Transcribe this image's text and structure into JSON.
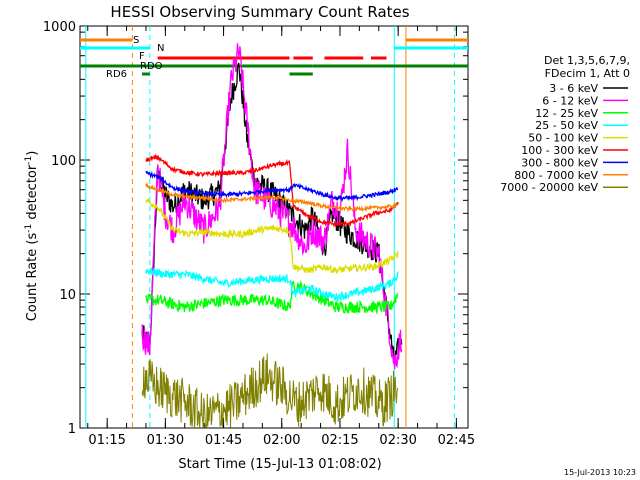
{
  "chart_data": {
    "type": "line",
    "title": "HESSI Observing Summary Count Rates",
    "xlabel": "Start Time (15-Jul-13 01:08:02)",
    "ylabel_main": "Count Rate (s",
    "ylabel_sup1": "-1",
    "ylabel_mid": " detector",
    "ylabel_sup2": "-1",
    "ylabel_end": ")",
    "y_scale": "log",
    "ylim": [
      1,
      1000
    ],
    "xlim_minutes": [
      68,
      168
    ],
    "x_ticks": [
      {
        "minute": 75,
        "label": "01:15"
      },
      {
        "minute": 90,
        "label": "01:30"
      },
      {
        "minute": 105,
        "label": "01:45"
      },
      {
        "minute": 120,
        "label": "02:00"
      },
      {
        "minute": 135,
        "label": "02:15"
      },
      {
        "minute": 150,
        "label": "02:30"
      },
      {
        "minute": 165,
        "label": "02:45"
      }
    ],
    "y_ticks": [
      {
        "value": 1,
        "label": "1"
      },
      {
        "value": 10,
        "label": "10"
      },
      {
        "value": 100,
        "label": "100"
      },
      {
        "value": 1000,
        "label": "1000"
      }
    ],
    "legend_header": [
      "Det 1,3,5,6,7,9,",
      "FDecim 1, Att 0"
    ],
    "legend_placement": "right",
    "series": [
      {
        "name": "3 - 6 keV",
        "color": "#000000",
        "baseline": 40,
        "points": [
          [
            84,
            5
          ],
          [
            86,
            4
          ],
          [
            88,
            80
          ],
          [
            90,
            55
          ],
          [
            92,
            45
          ],
          [
            95,
            60
          ],
          [
            100,
            50
          ],
          [
            104,
            60
          ],
          [
            106,
            180
          ],
          [
            107,
            300
          ],
          [
            109,
            500
          ],
          [
            111,
            150
          ],
          [
            113,
            70
          ],
          [
            118,
            55
          ],
          [
            123,
            38
          ],
          [
            126,
            30
          ],
          [
            128,
            38
          ],
          [
            131,
            22
          ],
          [
            133,
            40
          ],
          [
            136,
            30
          ],
          [
            140,
            25
          ],
          [
            145,
            20
          ],
          [
            149,
            3
          ],
          [
            151,
            5
          ]
        ]
      },
      {
        "name": "6 - 12 keV",
        "color": "#ff00ff",
        "baseline": 30,
        "points": [
          [
            84,
            5
          ],
          [
            86,
            4
          ],
          [
            88,
            90
          ],
          [
            90,
            40
          ],
          [
            92,
            30
          ],
          [
            95,
            50
          ],
          [
            100,
            30
          ],
          [
            104,
            45
          ],
          [
            106,
            200
          ],
          [
            107,
            400
          ],
          [
            109,
            650
          ],
          [
            111,
            200
          ],
          [
            113,
            60
          ],
          [
            118,
            45
          ],
          [
            123,
            32
          ],
          [
            126,
            22
          ],
          [
            128,
            30
          ],
          [
            131,
            25
          ],
          [
            133,
            50
          ],
          [
            135,
            40
          ],
          [
            137,
            120
          ],
          [
            139,
            30
          ],
          [
            145,
            20
          ],
          [
            149,
            3
          ],
          [
            151,
            5
          ]
        ]
      },
      {
        "name": "12 - 25 keV",
        "color": "#00ff00",
        "baseline": 8,
        "points": [
          [
            85,
            9
          ],
          [
            88,
            9
          ],
          [
            95,
            8
          ],
          [
            100,
            8.5
          ],
          [
            105,
            9
          ],
          [
            110,
            9
          ],
          [
            116,
            9
          ],
          [
            122,
            8
          ],
          [
            123,
            12
          ],
          [
            128,
            10
          ],
          [
            134,
            8
          ],
          [
            138,
            8
          ],
          [
            144,
            8
          ],
          [
            148,
            8
          ],
          [
            150,
            10
          ]
        ]
      },
      {
        "name": "25 - 50 keV",
        "color": "#00ffff",
        "baseline": 12,
        "points": [
          [
            85,
            15
          ],
          [
            90,
            14
          ],
          [
            95,
            14
          ],
          [
            100,
            13
          ],
          [
            105,
            12
          ],
          [
            110,
            12.5
          ],
          [
            116,
            13
          ],
          [
            122,
            13
          ],
          [
            123,
            10
          ],
          [
            127,
            11
          ],
          [
            131,
            10
          ],
          [
            134,
            9.5
          ],
          [
            138,
            10
          ],
          [
            144,
            11
          ],
          [
            148,
            12
          ],
          [
            150,
            14
          ]
        ]
      },
      {
        "name": "50 - 100 keV",
        "color": "#dddd00",
        "baseline": 25,
        "points": [
          [
            85,
            50
          ],
          [
            88,
            45
          ],
          [
            92,
            30
          ],
          [
            96,
            28
          ],
          [
            100,
            29
          ],
          [
            105,
            28
          ],
          [
            110,
            28
          ],
          [
            114,
            30
          ],
          [
            118,
            31
          ],
          [
            122,
            30
          ],
          [
            123,
            16
          ],
          [
            127,
            15
          ],
          [
            131,
            16
          ],
          [
            134,
            15
          ],
          [
            138,
            15.5
          ],
          [
            144,
            16
          ],
          [
            148,
            18
          ],
          [
            150,
            20
          ]
        ]
      },
      {
        "name": "100 - 300 keV",
        "color": "#ff0000",
        "baseline": 80,
        "points": [
          [
            85,
            100
          ],
          [
            88,
            105
          ],
          [
            92,
            85
          ],
          [
            96,
            80
          ],
          [
            100,
            78
          ],
          [
            105,
            80
          ],
          [
            110,
            80
          ],
          [
            114,
            85
          ],
          [
            118,
            92
          ],
          [
            122,
            95
          ],
          [
            123,
            45
          ],
          [
            127,
            38
          ],
          [
            131,
            34
          ],
          [
            134,
            33
          ],
          [
            138,
            34
          ],
          [
            144,
            40
          ],
          [
            148,
            42
          ],
          [
            150,
            48
          ]
        ]
      },
      {
        "name": "300 - 800 keV",
        "color": "#0000ff",
        "baseline": 60,
        "points": [
          [
            85,
            80
          ],
          [
            88,
            75
          ],
          [
            92,
            62
          ],
          [
            96,
            58
          ],
          [
            100,
            56
          ],
          [
            105,
            55
          ],
          [
            110,
            56
          ],
          [
            114,
            58
          ],
          [
            118,
            60
          ],
          [
            122,
            60
          ],
          [
            123,
            65
          ],
          [
            127,
            60
          ],
          [
            131,
            55
          ],
          [
            134,
            52
          ],
          [
            138,
            52
          ],
          [
            144,
            55
          ],
          [
            148,
            58
          ],
          [
            150,
            62
          ]
        ]
      },
      {
        "name": "800 - 7000 keV",
        "color": "#ff8000",
        "baseline": 50,
        "points": [
          [
            85,
            65
          ],
          [
            88,
            60
          ],
          [
            92,
            55
          ],
          [
            96,
            53
          ],
          [
            100,
            52
          ],
          [
            105,
            50
          ],
          [
            110,
            51
          ],
          [
            114,
            52
          ],
          [
            118,
            53
          ],
          [
            122,
            50
          ],
          [
            127,
            48
          ],
          [
            131,
            45
          ],
          [
            134,
            44
          ],
          [
            138,
            43
          ],
          [
            144,
            44
          ],
          [
            148,
            45
          ],
          [
            150,
            46
          ]
        ]
      },
      {
        "name": "7000 - 20000 keV",
        "color": "#808000",
        "baseline": 1.5,
        "points": [
          [
            84,
            2.5
          ],
          [
            88,
            2
          ],
          [
            96,
            1.5
          ],
          [
            100,
            1.2
          ],
          [
            108,
            1.5
          ],
          [
            116,
            2.5
          ],
          [
            120,
            2
          ],
          [
            124,
            1.5
          ],
          [
            130,
            2
          ],
          [
            134,
            1.5
          ],
          [
            140,
            2
          ],
          [
            146,
            1.5
          ],
          [
            150,
            2
          ]
        ]
      }
    ],
    "flags": [
      {
        "label": "S",
        "color": "#ff8000"
      },
      {
        "label": "N",
        "color": "#00ffff"
      },
      {
        "label": "F",
        "color": "#ff0000"
      },
      {
        "label": "RDO",
        "color": "#008000"
      },
      {
        "label": "RD6",
        "color": "#008000"
      }
    ]
  },
  "timestamp": "15-Jul-2013 10:23"
}
